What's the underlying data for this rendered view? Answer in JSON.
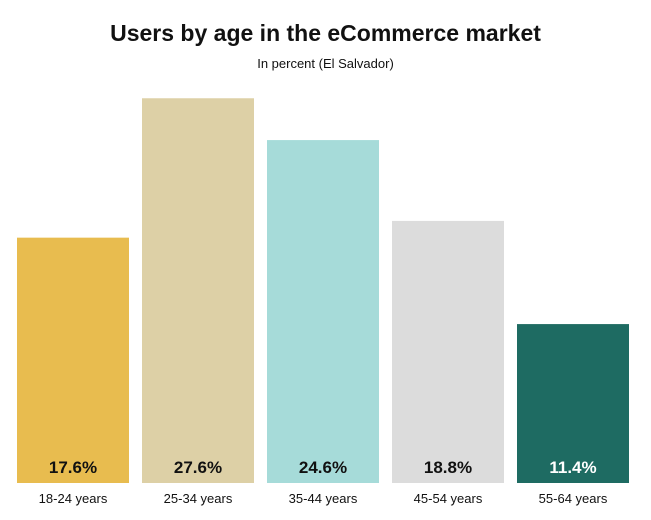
{
  "chart_data": {
    "type": "bar",
    "title": "Users by age in the eCommerce market",
    "subtitle": "In percent (El Salvador)",
    "categories": [
      "18-24 years",
      "25-34 years",
      "35-44 years",
      "45-54 years",
      "55-64 years"
    ],
    "values": [
      17.6,
      27.6,
      24.6,
      18.8,
      11.4
    ],
    "value_labels": [
      "17.6%",
      "27.6%",
      "24.6%",
      "18.8%",
      "11.4%"
    ],
    "colors": [
      "#e8bc4f",
      "#ddd0a6",
      "#a6dbd9",
      "#dcdcdc",
      "#1e6b62"
    ],
    "label_colors": [
      "#111111",
      "#111111",
      "#111111",
      "#111111",
      "#ffffff"
    ],
    "grid": false,
    "legend": "none"
  }
}
